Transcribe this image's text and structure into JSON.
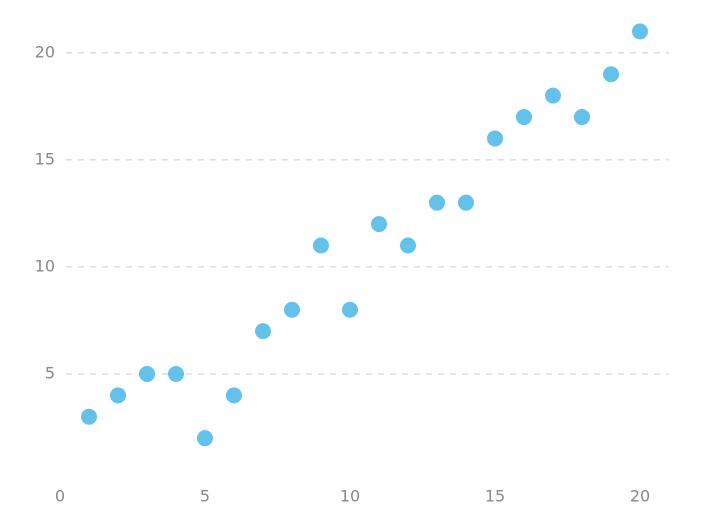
{
  "chart_data": {
    "type": "scatter",
    "x": [
      1,
      2,
      3,
      4,
      5,
      6,
      7,
      8,
      9,
      10,
      11,
      12,
      13,
      14,
      15,
      16,
      17,
      18,
      19,
      20
    ],
    "values": [
      3,
      4,
      5,
      5,
      2,
      4,
      7,
      8,
      11,
      8,
      12,
      11,
      13,
      13,
      16,
      17,
      18,
      17,
      19,
      21
    ],
    "color": "#63c1ea",
    "xlim": [
      0,
      21
    ],
    "ylim": [
      0,
      22
    ],
    "xticks": [
      0,
      5,
      10,
      15,
      20
    ],
    "yticks": [
      5,
      10,
      15,
      20
    ],
    "grid": true
  }
}
